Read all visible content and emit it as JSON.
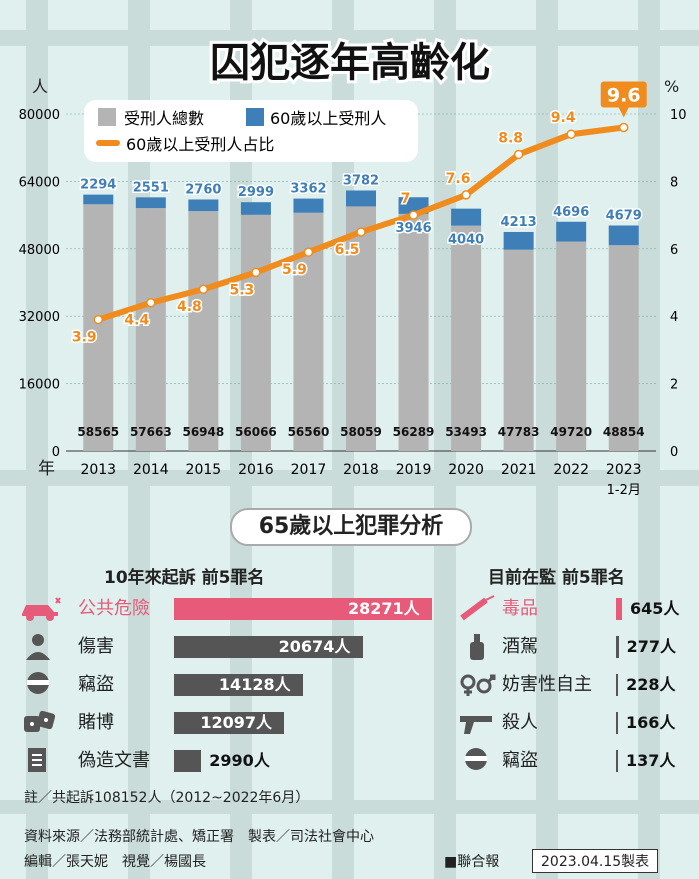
{
  "title": "囚犯逐年高齡化",
  "colors": {
    "total": "#b4b4b4",
    "elderly": "#3f7fb8",
    "line": "#f08c1e",
    "accent": "#e85a7a",
    "dark": "#555555"
  },
  "chart_data": {
    "type": "bar",
    "title": "囚犯逐年高齡化",
    "left_axis_unit": "人",
    "right_axis_unit": "%",
    "x_axis_unit": "年",
    "categories": [
      "2013",
      "2014",
      "2015",
      "2016",
      "2017",
      "2018",
      "2019",
      "2020",
      "2021",
      "2022",
      "2023"
    ],
    "category_sub": [
      "",
      "",
      "",
      "",
      "",
      "",
      "",
      "",
      "",
      "",
      "1-2月"
    ],
    "ylim": [
      0,
      80000
    ],
    "y_ticks": [
      "0",
      "16000",
      "32000",
      "48000",
      "64000",
      "80000"
    ],
    "y2lim": [
      0,
      10
    ],
    "y2_ticks": [
      "0",
      "2",
      "4",
      "6",
      "8",
      "10"
    ],
    "legend_position": "top-left",
    "series": [
      {
        "name": "受刑人總數",
        "type": "bar",
        "values": [
          58565,
          57663,
          56948,
          56066,
          56560,
          58059,
          56289,
          53493,
          47783,
          49720,
          48854
        ],
        "labels": [
          "58565",
          "57663",
          "56948",
          "56066",
          "56560",
          "58059",
          "56289",
          "53493",
          "47783",
          "49720",
          "48854"
        ]
      },
      {
        "name": "60歲以上受刑人",
        "type": "bar",
        "values": [
          2294,
          2551,
          2760,
          2999,
          3362,
          3782,
          3946,
          4040,
          4213,
          4696,
          4679
        ],
        "labels": [
          "2294",
          "2551",
          "2760",
          "2999",
          "3362",
          "3782",
          "3946",
          "4040",
          "4213",
          "4696",
          "4679"
        ]
      },
      {
        "name": "60歲以上受刑人占比",
        "type": "line",
        "axis": "right",
        "values": [
          3.9,
          4.4,
          4.8,
          5.3,
          5.9,
          6.5,
          7,
          7.6,
          8.8,
          9.4,
          9.6
        ],
        "labels": [
          "3.9",
          "4.4",
          "4.8",
          "5.3",
          "5.9",
          "6.5",
          "7",
          "7.6",
          "8.8",
          "9.4",
          "9.6"
        ]
      }
    ]
  },
  "analysis": {
    "title": "65歲以上犯罪分析",
    "left": {
      "heading": "10年來起訴 前5罪名",
      "items": [
        {
          "label": "公共危險",
          "value": 28271,
          "value_text": "28271人",
          "icon": "car-crash-icon"
        },
        {
          "label": "傷害",
          "value": 20674,
          "value_text": "20674人",
          "icon": "injury-icon"
        },
        {
          "label": "竊盜",
          "value": 14128,
          "value_text": "14128人",
          "icon": "thief-icon"
        },
        {
          "label": "賭博",
          "value": 12097,
          "value_text": "12097人",
          "icon": "dice-icon"
        },
        {
          "label": "偽造文書",
          "value": 2990,
          "value_text": "2990人",
          "icon": "document-icon"
        }
      ],
      "note": "註／共起訴108152人（2012~2022年6月）"
    },
    "right": {
      "heading": "目前在監 前5罪名",
      "items": [
        {
          "label": "毒品",
          "value": 645,
          "value_text": "645人",
          "icon": "syringe-icon"
        },
        {
          "label": "酒駕",
          "value": 277,
          "value_text": "277人",
          "icon": "bottle-icon"
        },
        {
          "label": "妨害性自主",
          "value": 228,
          "value_text": "228人",
          "icon": "gender-icon"
        },
        {
          "label": "殺人",
          "value": 166,
          "value_text": "166人",
          "icon": "gun-icon"
        },
        {
          "label": "竊盜",
          "value": 137,
          "value_text": "137人",
          "icon": "thief-icon"
        }
      ]
    }
  },
  "footer": {
    "source": "資料來源／法務部統計處、矯正署　製表／司法社會中心",
    "credits": "編輯／張天妮　視覺／楊國長",
    "publisher": "聯合報",
    "date": "2023.04.15製表"
  }
}
